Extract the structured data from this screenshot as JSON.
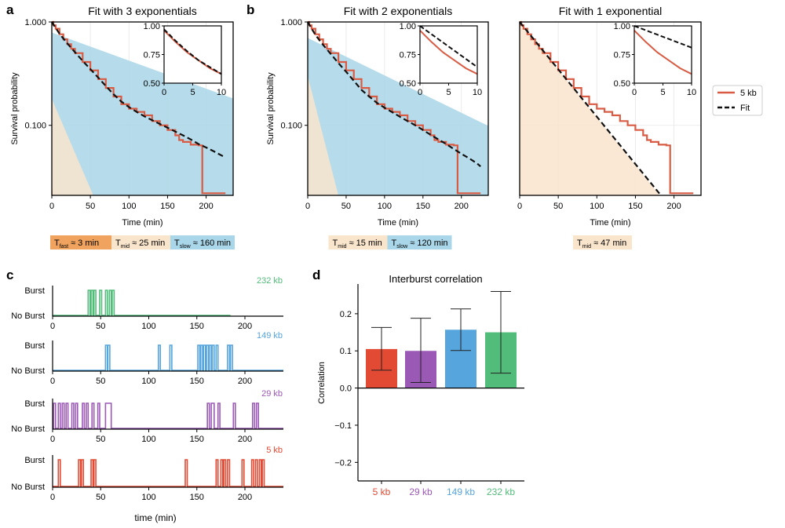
{
  "panel_labels": [
    "a",
    "b",
    "c",
    "d"
  ],
  "legend": {
    "series": "5 kb",
    "fit": "Fit"
  },
  "colors": {
    "data": "#d95b43",
    "fit": "#111111",
    "fast": "#f0a35e",
    "mid": "#f9e4cc",
    "slow": "#a9d6e8",
    "red": "#e34a33",
    "purple": "#9b59b6",
    "blue": "#56a5dd",
    "green": "#52bc7a"
  },
  "chart_data": [
    {
      "id": "a",
      "type": "line",
      "title": "Fit with 3 exponentials",
      "xlabel": "Time (min)",
      "ylabel": "Survival probability",
      "yscale": "log",
      "xlim": [
        0,
        235
      ],
      "ylim": [
        0.021,
        1.0
      ],
      "xticks": [
        "0",
        "50",
        "100",
        "150",
        "200"
      ],
      "yticks": [
        "1.000",
        "0.100"
      ],
      "data": {
        "x": [
          0,
          2,
          5,
          10,
          15,
          20,
          25,
          30,
          40,
          50,
          60,
          70,
          80,
          90,
          100,
          110,
          120,
          130,
          140,
          150,
          160,
          165,
          170,
          180,
          185,
          190,
          195,
          200,
          210,
          220,
          225
        ],
        "y": [
          1.0,
          0.93,
          0.86,
          0.76,
          0.68,
          0.61,
          0.55,
          0.5,
          0.41,
          0.34,
          0.28,
          0.23,
          0.19,
          0.16,
          0.145,
          0.135,
          0.125,
          0.11,
          0.1,
          0.09,
          0.08,
          0.072,
          0.069,
          0.065,
          0.065,
          0.064,
          0.022,
          0.022,
          0.022,
          0.022,
          0.022
        ]
      },
      "fit": {
        "x": [
          0,
          10,
          20,
          30,
          40,
          50,
          60,
          70,
          80,
          90,
          100,
          110,
          120,
          130,
          140,
          150,
          160,
          170,
          180,
          190,
          200,
          210,
          220,
          225
        ],
        "y": [
          1.0,
          0.77,
          0.62,
          0.51,
          0.42,
          0.35,
          0.29,
          0.24,
          0.2,
          0.17,
          0.15,
          0.135,
          0.122,
          0.112,
          0.103,
          0.095,
          0.087,
          0.08,
          0.073,
          0.066,
          0.061,
          0.056,
          0.051,
          0.049
        ]
      },
      "components": [
        {
          "key": "fast",
          "tau": 3,
          "amp": 0.03
        },
        {
          "key": "mid",
          "tau": 25,
          "amp": 0.18
        },
        {
          "key": "slow",
          "tau": 160,
          "amp": 0.79
        }
      ],
      "inset": {
        "xlim": [
          0,
          10
        ],
        "ylim": [
          0.5,
          1.0
        ],
        "xticks": [
          "0",
          "5",
          "10"
        ],
        "yticks": [
          "1.00",
          "0.75",
          "0.50"
        ],
        "data": {
          "x": [
            0,
            2,
            4,
            6,
            8,
            10
          ],
          "y": [
            0.96,
            0.86,
            0.77,
            0.7,
            0.63,
            0.58
          ]
        },
        "fit": {
          "x": [
            0,
            2,
            4,
            6,
            8,
            10
          ],
          "y": [
            0.97,
            0.87,
            0.78,
            0.7,
            0.64,
            0.58
          ]
        }
      },
      "labels": [
        {
          "key": "fast",
          "prefix": "T",
          "sub": "fast",
          "text": "≈ 3 min"
        },
        {
          "key": "mid",
          "prefix": "T",
          "sub": "mid",
          "text": "≈ 25 min"
        },
        {
          "key": "slow",
          "prefix": "T",
          "sub": "slow",
          "text": "≈ 160 min"
        }
      ]
    },
    {
      "id": "b",
      "type": "line",
      "title": "Fit with 2 exponentials",
      "xlabel": "Time (min)",
      "ylabel": "Survival probability",
      "yscale": "log",
      "xlim": [
        0,
        235
      ],
      "ylim": [
        0.021,
        1.0
      ],
      "xticks": [
        "0",
        "50",
        "100",
        "150",
        "200"
      ],
      "yticks": [
        "1.000",
        "0.100"
      ],
      "data": {
        "x": [
          0,
          2,
          5,
          10,
          15,
          20,
          25,
          30,
          40,
          50,
          60,
          70,
          80,
          90,
          100,
          110,
          120,
          130,
          140,
          150,
          160,
          165,
          170,
          180,
          185,
          190,
          195,
          200,
          210,
          220,
          225
        ],
        "y": [
          1.0,
          0.93,
          0.86,
          0.76,
          0.68,
          0.61,
          0.55,
          0.5,
          0.41,
          0.34,
          0.28,
          0.23,
          0.19,
          0.16,
          0.145,
          0.135,
          0.125,
          0.11,
          0.1,
          0.09,
          0.08,
          0.072,
          0.069,
          0.065,
          0.065,
          0.064,
          0.022,
          0.022,
          0.022,
          0.022,
          0.022
        ]
      },
      "fit": {
        "x": [
          0,
          10,
          20,
          30,
          40,
          50,
          60,
          70,
          80,
          90,
          100,
          110,
          120,
          130,
          140,
          150,
          160,
          170,
          180,
          190,
          200,
          210,
          220,
          225
        ],
        "y": [
          1.0,
          0.75,
          0.6,
          0.49,
          0.4,
          0.33,
          0.27,
          0.22,
          0.19,
          0.165,
          0.148,
          0.134,
          0.121,
          0.11,
          0.1,
          0.09,
          0.081,
          0.073,
          0.066,
          0.059,
          0.053,
          0.048,
          0.043,
          0.04
        ]
      },
      "components": [
        {
          "key": "mid",
          "tau": 15,
          "amp": 0.3
        },
        {
          "key": "slow",
          "tau": 120,
          "amp": 0.7
        }
      ],
      "inset": {
        "xlim": [
          0,
          10
        ],
        "ylim": [
          0.5,
          1.0
        ],
        "xticks": [
          "0",
          "5",
          "10"
        ],
        "yticks": [
          "1.00",
          "0.75",
          "0.50"
        ],
        "data": {
          "x": [
            0,
            2,
            4,
            6,
            8,
            10
          ],
          "y": [
            0.96,
            0.86,
            0.77,
            0.7,
            0.63,
            0.58
          ]
        },
        "fit": {
          "x": [
            0,
            10
          ],
          "y": [
            1.0,
            0.64
          ]
        }
      },
      "labels": [
        {
          "key": "mid",
          "prefix": "T",
          "sub": "mid",
          "text": "≈ 15 min"
        },
        {
          "key": "slow",
          "prefix": "T",
          "sub": "slow",
          "text": "≈ 120 min"
        }
      ]
    },
    {
      "id": "b2",
      "type": "line",
      "title": "Fit with 1 exponential",
      "xlabel": "Time (min)",
      "ylabel": "",
      "yscale": "log",
      "xlim": [
        0,
        235
      ],
      "ylim": [
        0.021,
        1.0
      ],
      "xticks": [
        "0",
        "50",
        "100",
        "150",
        "200"
      ],
      "yticks": [],
      "data": {
        "x": [
          0,
          2,
          5,
          10,
          15,
          20,
          25,
          30,
          40,
          50,
          60,
          70,
          80,
          90,
          100,
          110,
          120,
          130,
          140,
          150,
          160,
          165,
          170,
          180,
          185,
          190,
          195,
          200,
          210,
          220,
          225
        ],
        "y": [
          1.0,
          0.93,
          0.86,
          0.76,
          0.68,
          0.61,
          0.55,
          0.5,
          0.41,
          0.34,
          0.28,
          0.23,
          0.19,
          0.16,
          0.145,
          0.135,
          0.125,
          0.11,
          0.1,
          0.09,
          0.08,
          0.072,
          0.069,
          0.065,
          0.065,
          0.064,
          0.022,
          0.022,
          0.022,
          0.022,
          0.022
        ]
      },
      "fit": {
        "x": [
          0,
          183
        ],
        "y": [
          1.0,
          0.021
        ]
      },
      "components": [
        {
          "key": "mid",
          "tau": 47,
          "amp": 1.0
        }
      ],
      "inset": {
        "xlim": [
          0,
          10
        ],
        "ylim": [
          0.5,
          1.0
        ],
        "xticks": [
          "0",
          "5",
          "10"
        ],
        "yticks": [
          "1.00",
          "0.75",
          "0.50"
        ],
        "data": {
          "x": [
            0,
            2,
            4,
            6,
            8,
            10
          ],
          "y": [
            0.96,
            0.86,
            0.77,
            0.7,
            0.63,
            0.58
          ]
        },
        "fit": {
          "x": [
            0,
            10
          ],
          "y": [
            1.0,
            0.81
          ]
        }
      },
      "labels": [
        {
          "key": "mid",
          "prefix": "T",
          "sub": "mid",
          "text": "≈ 47 min"
        }
      ]
    },
    {
      "id": "c",
      "type": "line",
      "subtype": "burst_trace",
      "xlabel": "time (min)",
      "xlim": [
        0,
        240
      ],
      "xticks": [
        "0",
        "50",
        "100",
        "150",
        "200"
      ],
      "state_labels": {
        "high": "Burst",
        "low": "No Burst"
      },
      "series": [
        {
          "name": "232 kb",
          "color_key": "green",
          "end": 185,
          "bursts": [
            [
              37,
              39
            ],
            [
              40,
              42
            ],
            [
              43,
              45
            ],
            [
              49,
              51
            ],
            [
              55,
              57
            ],
            [
              59,
              61
            ],
            [
              62,
              64
            ]
          ]
        },
        {
          "name": "149 kb",
          "color_key": "blue",
          "end": 240,
          "bursts": [
            [
              55,
              57
            ],
            [
              57.5,
              59.5
            ],
            [
              110,
              112
            ],
            [
              122,
              124
            ],
            [
              151,
              153
            ],
            [
              154,
              156
            ],
            [
              157,
              159
            ],
            [
              160,
              162
            ],
            [
              163,
              165
            ],
            [
              166,
              168
            ],
            [
              170,
              172
            ],
            [
              182,
              184
            ],
            [
              185,
              187
            ]
          ]
        },
        {
          "name": "29 kb",
          "color_key": "purple",
          "end": 240,
          "bursts": [
            [
              1,
              3
            ],
            [
              6,
              8
            ],
            [
              10,
              12
            ],
            [
              14,
              16
            ],
            [
              20,
              22
            ],
            [
              24,
              26
            ],
            [
              31,
              33
            ],
            [
              35,
              37
            ],
            [
              41,
              43
            ],
            [
              47,
              49
            ],
            [
              55,
              61
            ],
            [
              161,
              163
            ],
            [
              165,
              168
            ],
            [
              172,
              174
            ],
            [
              188,
              190
            ],
            [
              208,
              210
            ],
            [
              212,
              214
            ]
          ]
        },
        {
          "name": "5 kb",
          "color_key": "red",
          "end": 240,
          "bursts": [
            [
              6,
              8
            ],
            [
              27,
              29
            ],
            [
              30,
              32
            ],
            [
              40,
              42
            ],
            [
              43,
              45
            ],
            [
              138,
              140
            ],
            [
              170,
              172
            ],
            [
              175,
              177
            ],
            [
              178,
              180
            ],
            [
              182,
              184
            ],
            [
              197,
              199
            ],
            [
              207,
              209
            ],
            [
              211,
              213
            ],
            [
              215,
              217
            ],
            [
              218,
              220
            ]
          ]
        }
      ]
    },
    {
      "id": "d",
      "type": "bar",
      "title": "Interburst correlation",
      "xlabel": "",
      "ylabel": "Correlation",
      "ylim": [
        -0.25,
        0.28
      ],
      "yticks": [
        "−0.2",
        "−0.1",
        "0.0",
        "0.1",
        "0.2"
      ],
      "categories": [
        "5 kb",
        "29 kb",
        "149 kb",
        "232 kb"
      ],
      "values": [
        0.105,
        0.1,
        0.157,
        0.15
      ],
      "err_low": [
        0.048,
        0.015,
        0.101,
        0.04
      ],
      "err_high": [
        0.163,
        0.188,
        0.213,
        0.26
      ],
      "color_keys": [
        "red",
        "purple",
        "blue",
        "green"
      ]
    }
  ]
}
